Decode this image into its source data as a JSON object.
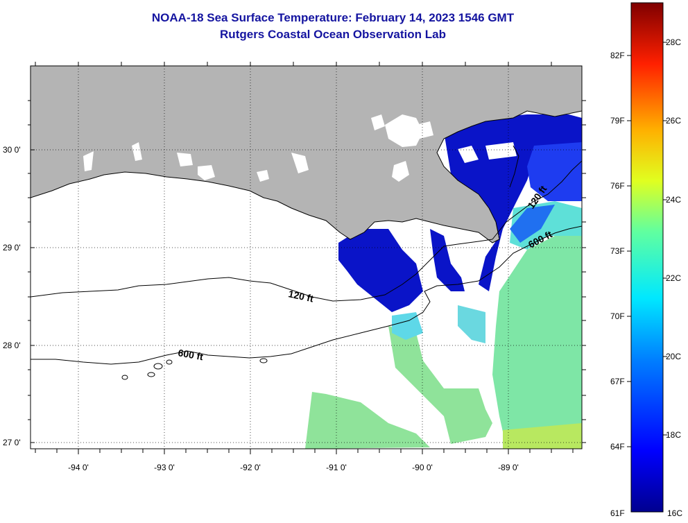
{
  "title": "NOAA-18 Sea Surface Temperature:  February 14, 2023 1546 GMT",
  "subtitle": "Rutgers Coastal Ocean Observation Lab",
  "map": {
    "lon_labels": [
      "-94 0'",
      "-93 0'",
      "-92 0'",
      "-91 0'",
      "-90 0'",
      "-89 0'"
    ],
    "lat_labels": [
      "30 0'",
      "29 0'",
      "28 0'",
      "27 0'"
    ],
    "contours": [
      {
        "label": "120 ft"
      },
      {
        "label": "600 ft"
      },
      {
        "label": "120 ft"
      },
      {
        "label": "600 ft"
      }
    ]
  },
  "colorbar": {
    "fahrenheit": [
      "82F",
      "79F",
      "76F",
      "73F",
      "70F",
      "67F",
      "64F",
      "61F"
    ],
    "celsius": [
      "28C",
      "26C",
      "24C",
      "22C",
      "20C",
      "18C",
      "16C"
    ]
  },
  "colors": {
    "land": "#b4b4b4",
    "title": "#1414a0",
    "sst_cold": "#0a14c8",
    "sst_mid": "#40e0c0",
    "sst_warm": "#90e870"
  }
}
